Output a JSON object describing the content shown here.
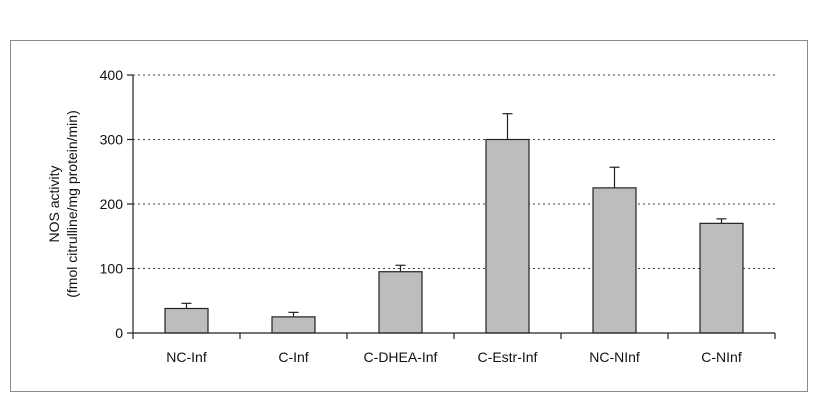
{
  "chart_data": {
    "type": "bar",
    "title": "",
    "xlabel": "",
    "ylabel_line1": "NOS activity",
    "ylabel_line2": "(fmol citrulline/mg protein/min)",
    "categories": [
      "NC-Inf",
      "C-Inf",
      "C-DHEA-Inf",
      "C-Estr-Inf",
      "NC-NInf",
      "C-NInf"
    ],
    "values": [
      38,
      25,
      95,
      300,
      225,
      170
    ],
    "errors": [
      8,
      7,
      10,
      40,
      32,
      7
    ],
    "ylim": [
      0,
      400
    ],
    "yticks": [
      0,
      100,
      200,
      300,
      400
    ],
    "grid": "horizontal dotted",
    "bar_color": "#bdbdbd",
    "bar_edge_color": "#222222"
  }
}
